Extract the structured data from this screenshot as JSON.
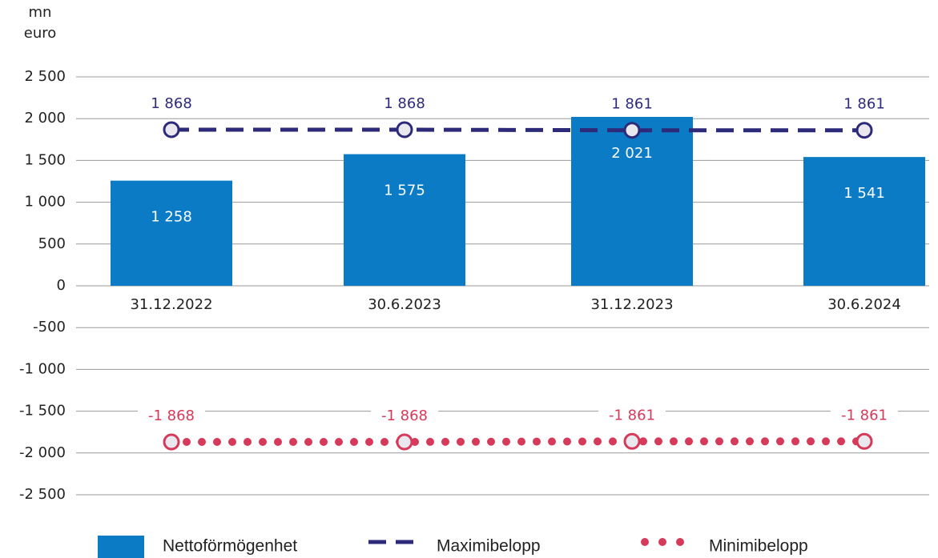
{
  "chart_data": {
    "type": "bar",
    "y_label": [
      "mn",
      "euro"
    ],
    "categories": [
      "31.12.2022",
      "30.6.2023",
      "31.12.2023",
      "30.6.2024"
    ],
    "series": [
      {
        "name": "Nettoförmögenhet",
        "type": "bar",
        "color": "#0a7bc4",
        "values": [
          1258,
          1575,
          2021,
          1541
        ],
        "value_labels": [
          "1 258",
          "1 575",
          "2 021",
          "1 541"
        ]
      },
      {
        "name": "Maximibelopp",
        "type": "line",
        "style": "dashed",
        "color": "#2e2a7a",
        "values": [
          1868,
          1868,
          1861,
          1861
        ],
        "value_labels": [
          "1 868",
          "1 868",
          "1 861",
          "1 861"
        ]
      },
      {
        "name": "Minimibelopp",
        "type": "line",
        "style": "dotted",
        "color": "#d63a5a",
        "values": [
          -1868,
          -1868,
          -1861,
          -1861
        ],
        "value_labels": [
          "-1 868",
          "-1 868",
          "-1 861",
          "-1 861"
        ]
      }
    ],
    "ylim": [
      -2500,
      2500
    ],
    "yticks": [
      {
        "value": 2500,
        "label": "2 500"
      },
      {
        "value": 2000,
        "label": "2 000"
      },
      {
        "value": 1500,
        "label": "1 500"
      },
      {
        "value": 1000,
        "label": "1 000"
      },
      500,
      0,
      -500,
      {
        "value": -1000,
        "label": "-1 000"
      },
      {
        "value": -1500,
        "label": "-1 500"
      },
      {
        "value": -2000,
        "label": "-2 000"
      },
      {
        "value": -2500,
        "label": "-2 500"
      }
    ],
    "grid": true
  }
}
